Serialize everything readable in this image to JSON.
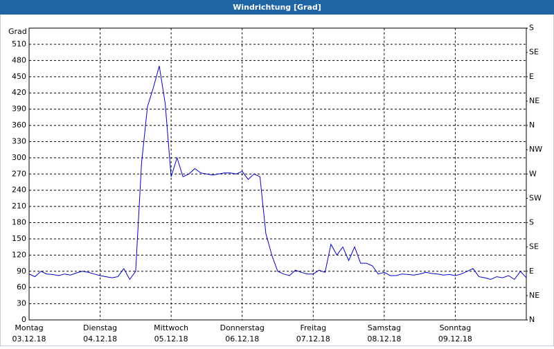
{
  "chart_data": {
    "type": "line",
    "title": "Windrichtung [Grad]",
    "y_label": "Grad",
    "x": [
      0,
      2,
      4,
      6,
      8,
      10,
      12,
      14,
      16,
      18,
      20,
      22,
      24,
      26,
      28,
      30,
      32,
      34,
      36,
      38,
      40,
      42,
      44,
      46,
      48,
      50,
      52,
      54,
      56,
      58,
      60,
      62,
      64,
      66,
      68,
      70,
      72,
      74,
      76,
      78,
      80,
      82,
      84,
      86,
      88,
      90,
      92,
      94,
      96,
      98,
      100,
      102,
      104,
      106,
      108,
      110,
      112,
      114,
      116,
      118,
      120,
      122,
      124,
      126,
      128,
      130,
      132,
      134,
      136,
      138,
      140,
      142,
      144,
      146,
      148,
      150,
      152,
      154,
      156,
      158,
      160,
      162,
      164,
      166,
      168
    ],
    "series": [
      {
        "name": "Windrichtung",
        "color": "#0000c8",
        "values": [
          85,
          80,
          90,
          85,
          84,
          82,
          85,
          83,
          87,
          90,
          88,
          85,
          82,
          80,
          78,
          80,
          95,
          75,
          90,
          290,
          395,
          430,
          470,
          400,
          265,
          300,
          265,
          270,
          280,
          272,
          270,
          268,
          270,
          272,
          272,
          270,
          275,
          260,
          270,
          265,
          160,
          120,
          90,
          85,
          82,
          92,
          88,
          85,
          85,
          92,
          88,
          140,
          120,
          135,
          110,
          135,
          105,
          105,
          100,
          85,
          88,
          82,
          82,
          85,
          84,
          83,
          85,
          88,
          86,
          85,
          83,
          84,
          82,
          85,
          90,
          95,
          80,
          78,
          75,
          80,
          78,
          82,
          75,
          90,
          78
        ]
      }
    ],
    "xlim": [
      0,
      168
    ],
    "xticks": [
      {
        "value": 0,
        "label": "Montag"
      },
      {
        "value": 24,
        "label": "Dienstag"
      },
      {
        "value": 48,
        "label": "Mittwoch"
      },
      {
        "value": 72,
        "label": "Donnerstag"
      },
      {
        "value": 96,
        "label": "Freitag"
      },
      {
        "value": 120,
        "label": "Samstag"
      },
      {
        "value": 144,
        "label": "Sonntag"
      }
    ],
    "xtick_dates": [
      "03.12.18",
      "04.12.18",
      "05.12.18",
      "06.12.18",
      "07.12.18",
      "08.12.18",
      "09.12.18"
    ],
    "ylim": [
      0,
      540
    ],
    "yticks": [
      0,
      30,
      60,
      90,
      120,
      150,
      180,
      210,
      240,
      270,
      300,
      330,
      360,
      390,
      420,
      450,
      480,
      510
    ],
    "y2lim": [
      0,
      540
    ],
    "y2ticks": [
      {
        "value": 0,
        "label": "N"
      },
      {
        "value": 45,
        "label": "NE"
      },
      {
        "value": 90,
        "label": "E"
      },
      {
        "value": 135,
        "label": "SE"
      },
      {
        "value": 180,
        "label": "S"
      },
      {
        "value": 225,
        "label": "SW"
      },
      {
        "value": 270,
        "label": "W"
      },
      {
        "value": 315,
        "label": "NW"
      },
      {
        "value": 360,
        "label": "N"
      },
      {
        "value": 405,
        "label": "NE"
      },
      {
        "value": 450,
        "label": "E"
      },
      {
        "value": 495,
        "label": "SE"
      },
      {
        "value": 540,
        "label": "S"
      }
    ],
    "grid": true
  }
}
